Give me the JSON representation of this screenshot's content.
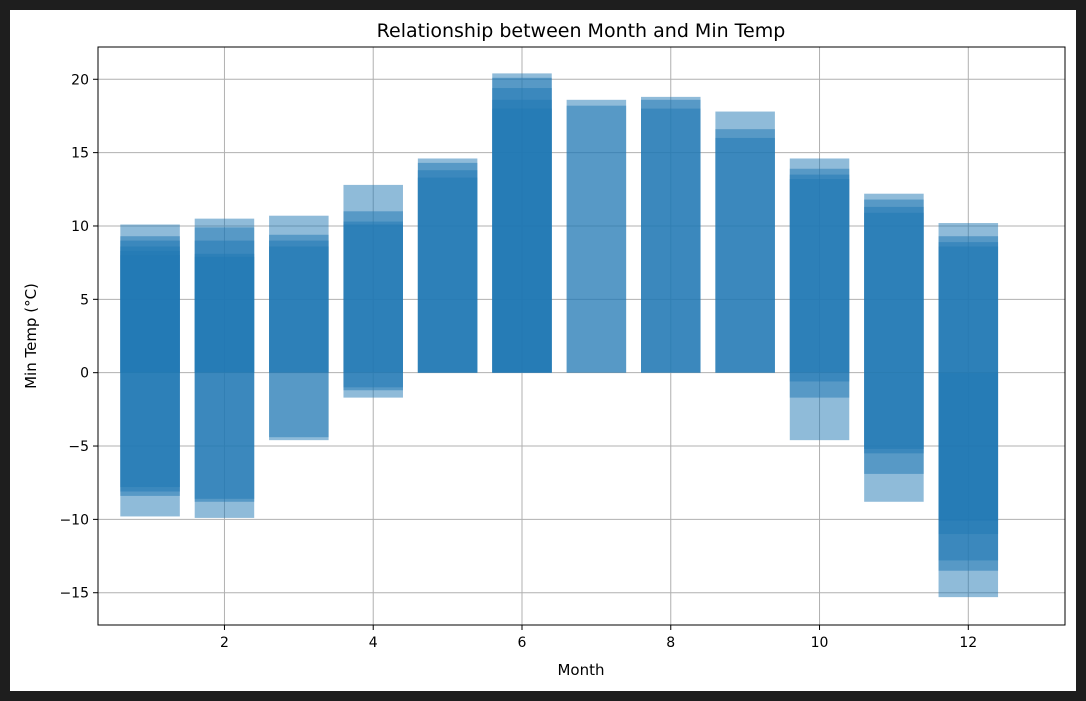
{
  "chart_data": {
    "type": "bar",
    "title": "Relationship between Month and Min Temp",
    "xlabel": "Month",
    "ylabel": "Min Temp (°C)",
    "xlim": [
      0.3,
      13.3
    ],
    "ylim": [
      -17.2,
      22.2
    ],
    "xticks": [
      2,
      4,
      6,
      8,
      10,
      12
    ],
    "yticks": [
      -15,
      -10,
      -5,
      0,
      5,
      10,
      15,
      20
    ],
    "ytick_labels": [
      "−15",
      "−10",
      "−5",
      "0",
      "5",
      "10",
      "15",
      "20"
    ],
    "grid": true,
    "bar_color": "#1f77b4",
    "bar_alpha": 0.5,
    "bar_width": 0.8,
    "note_values": "Overlapping semi-transparent bars; one bar per observation, x = month, height = min temp.",
    "series": [
      {
        "month": 1,
        "values": [
          10.1,
          9.3,
          9.0,
          8.6,
          8.3,
          8.0,
          -7.8,
          -8.1,
          -8.4,
          -9.8
        ]
      },
      {
        "month": 2,
        "values": [
          10.5,
          9.9,
          9.0,
          8.1,
          7.9,
          -8.6,
          -8.8,
          -9.9
        ]
      },
      {
        "month": 3,
        "values": [
          10.7,
          9.4,
          9.0,
          8.6,
          -4.4,
          -4.6
        ]
      },
      {
        "month": 4,
        "values": [
          12.8,
          11.0,
          10.3,
          10.1,
          -1.0,
          -1.2,
          -1.7
        ]
      },
      {
        "month": 5,
        "values": [
          14.6,
          14.3,
          13.8,
          13.3
        ]
      },
      {
        "month": 6,
        "values": [
          20.4,
          20.1,
          19.4,
          18.6,
          18.0
        ]
      },
      {
        "month": 7,
        "values": [
          18.6,
          18.2
        ]
      },
      {
        "month": 8,
        "values": [
          18.8,
          18.6,
          18.0
        ]
      },
      {
        "month": 9,
        "values": [
          17.8,
          16.6,
          16.0
        ]
      },
      {
        "month": 10,
        "values": [
          14.6,
          13.9,
          13.5,
          13.2,
          -0.6,
          -1.7,
          -4.6
        ]
      },
      {
        "month": 11,
        "values": [
          12.2,
          11.8,
          11.3,
          10.9,
          -5.2,
          -5.5,
          -6.9,
          -8.8
        ]
      },
      {
        "month": 12,
        "values": [
          10.2,
          9.3,
          8.9,
          8.6,
          -10.1,
          -11.0,
          -12.8,
          -13.5,
          -15.3
        ]
      }
    ]
  }
}
